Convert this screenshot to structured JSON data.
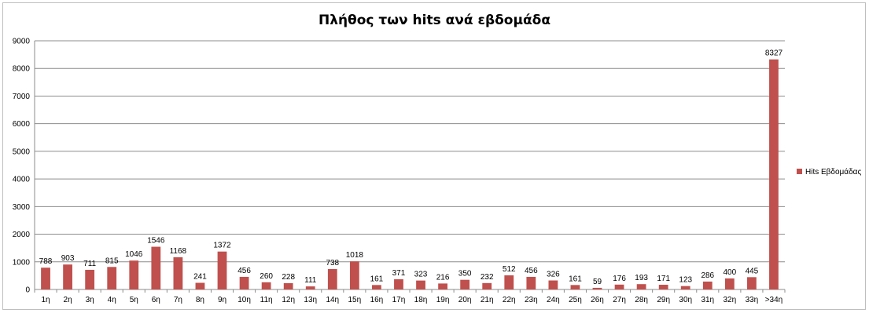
{
  "chart_data": {
    "type": "bar",
    "title": "Πλήθος των hits ανά εβδομάδα",
    "xlabel": "",
    "ylabel": "",
    "ylim": [
      0,
      9000
    ],
    "yticks": [
      0,
      1000,
      2000,
      3000,
      4000,
      5000,
      6000,
      7000,
      8000,
      9000
    ],
    "grid": true,
    "legend_position": "right",
    "categories": [
      "1η",
      "2η",
      "3η",
      "4η",
      "5η",
      "6η",
      "7η",
      "8η",
      "9η",
      "10η",
      "11η",
      "12η",
      "13η",
      "14η",
      "15η",
      "16η",
      "17η",
      "18η",
      "19η",
      "20η",
      "21η",
      "22η",
      "23η",
      "24η",
      "25η",
      "26η",
      "27η",
      "28η",
      "29η",
      "30η",
      "31η",
      "32η",
      "33η",
      ">34η"
    ],
    "series": [
      {
        "name": "Hits Εβδομάδας",
        "color": "#c0504d",
        "values": [
          788,
          903,
          711,
          815,
          1046,
          1546,
          1168,
          241,
          1372,
          456,
          260,
          228,
          111,
          738,
          1018,
          161,
          371,
          323,
          216,
          350,
          232,
          512,
          456,
          326,
          161,
          59,
          176,
          193,
          171,
          123,
          286,
          400,
          445,
          8327
        ]
      }
    ]
  }
}
